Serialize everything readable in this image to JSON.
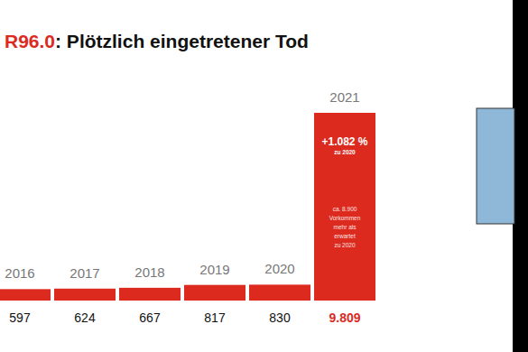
{
  "chart_data": {
    "type": "bar",
    "title": "R96.0: Plötzlich eingetretener Tod",
    "categories": [
      "2016",
      "2017",
      "2018",
      "2019",
      "2020",
      "2021"
    ],
    "values": [
      597,
      624,
      667,
      817,
      830,
      9809
    ],
    "value_labels": [
      "597",
      "624",
      "667",
      "817",
      "830",
      "9.809"
    ],
    "color": "#dc2a1f",
    "ylim": [
      0,
      9809
    ],
    "data_labels": true,
    "tick_labels": "x",
    "annotations": [
      {
        "text": "+1.082 %"
      },
      {
        "text": "zu 2020"
      },
      {
        "text": "ca. 8.900"
      },
      {
        "text": "Vorkommen"
      },
      {
        "text": "mehr als"
      },
      {
        "text": "erwartet"
      },
      {
        "text": "zu 2020"
      }
    ]
  }
}
